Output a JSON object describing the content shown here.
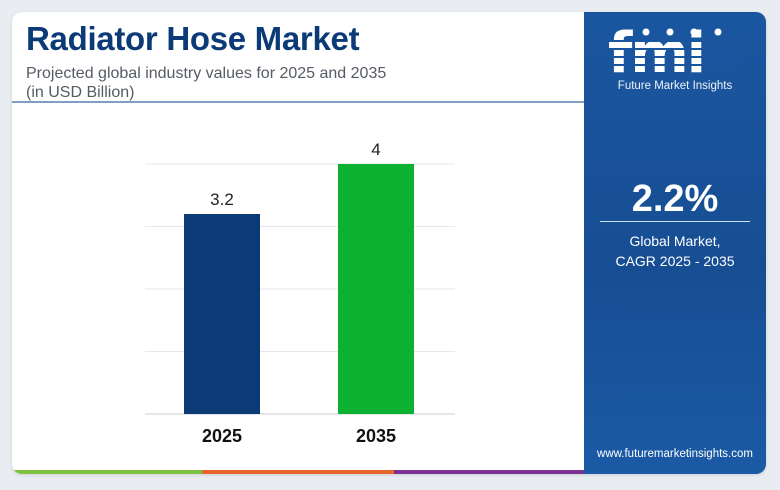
{
  "header": {
    "title": "Radiator Hose Market",
    "subtitle_line1": "Projected global industry values for 2025 and 2035",
    "subtitle_line2": "(in USD Billion)"
  },
  "side_panel": {
    "brand": "fmi",
    "tagline": "Future Market Insights",
    "cagr_value": "2.2%",
    "cagr_label_line1": "Global Market,",
    "cagr_label_line2": "CAGR 2025 - 2035",
    "website": "www.futuremarketinsights.com"
  },
  "colors": {
    "title": "#0b3a77",
    "bar_2025": "#0b3a77",
    "bar_2035": "#0cb132",
    "panel": "#1a56a0",
    "accent_green": "#7ec242",
    "accent_orange": "#e8652b",
    "accent_purple": "#7b3294"
  },
  "chart_data": {
    "type": "bar",
    "categories": [
      "2025",
      "2035"
    ],
    "values": [
      3.2,
      4
    ],
    "value_labels": [
      "3.2",
      "4"
    ],
    "bar_colors": [
      "#0b3a77",
      "#0cb132"
    ],
    "ylim": [
      0,
      4
    ],
    "grid": true,
    "title": "",
    "xlabel": "",
    "ylabel": ""
  }
}
